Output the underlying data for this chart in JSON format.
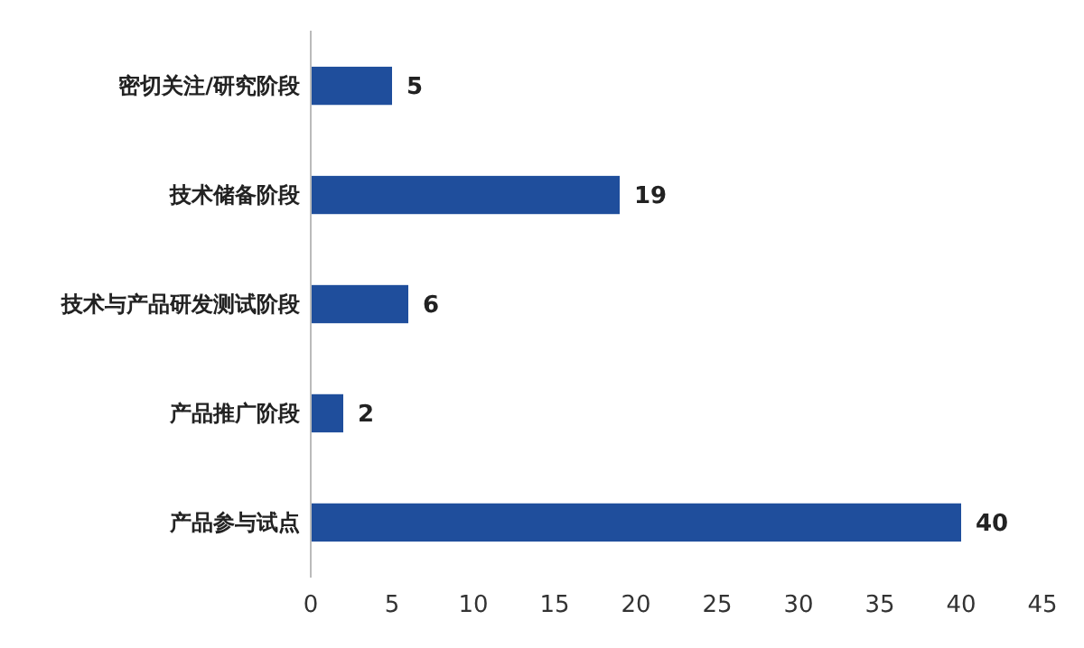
{
  "chart_data": {
    "type": "bar",
    "orientation": "horizontal",
    "categories": [
      "密切关注/研究阶段",
      "技术储备阶段",
      "技术与产品研发测试阶段",
      "产品推广阶段",
      "产品参与试点"
    ],
    "values": [
      5,
      19,
      6,
      2,
      40
    ],
    "color": "#1f4e9c",
    "xlim": [
      0,
      45
    ],
    "xticks": [
      0,
      5,
      10,
      15,
      20,
      25,
      30,
      35,
      40,
      45
    ],
    "data_labels": true
  }
}
